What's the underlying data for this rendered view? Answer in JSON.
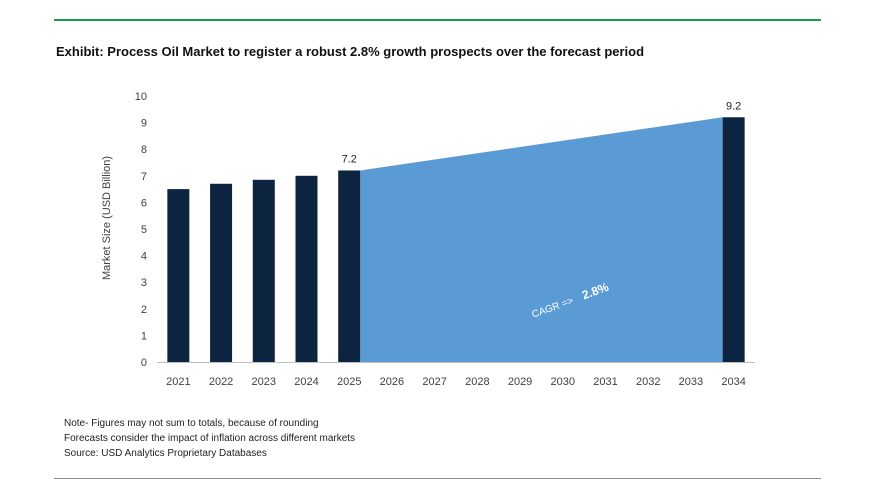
{
  "page": {
    "title": "Exhibit: Process Oil Market to register a robust 2.8% growth prospects over the forecast period",
    "notes": [
      "Note- Figures may not sum to totals, because of rounding",
      "Forecasts consider the impact of inflation across different markets",
      "Source: USD Analytics Proprietary Databases"
    ]
  },
  "chart_data": {
    "type": "bar",
    "title": "Process Oil Market to register a robust 2.8% growth prospects over the forecast period",
    "xlabel": "",
    "ylabel": "Market Size (USD Billion)",
    "ylim": [
      0,
      10
    ],
    "yticks": [
      "0",
      "1",
      "2",
      "3",
      "4",
      "5",
      "6",
      "7",
      "8",
      "9",
      "10"
    ],
    "categories": [
      "2021",
      "2022",
      "2023",
      "2024",
      "2025",
      "2026",
      "2027",
      "2028",
      "2029",
      "2030",
      "2031",
      "2032",
      "2033",
      "2034"
    ],
    "bars": [
      {
        "category": "2021",
        "value": 6.5
      },
      {
        "category": "2022",
        "value": 6.7
      },
      {
        "category": "2023",
        "value": 6.85
      },
      {
        "category": "2024",
        "value": 7.0
      },
      {
        "category": "2025",
        "value": 7.2,
        "label": "7.2"
      },
      {
        "category": "2034",
        "value": 9.2,
        "label": "9.2"
      }
    ],
    "forecast_area": {
      "from": "2025",
      "to": "2034",
      "start_value": 7.2,
      "end_value": 9.2
    },
    "annotation": {
      "prefix": "CAGR =>",
      "value": "2.8%"
    },
    "grid": false,
    "colors": {
      "bar": "#0d2440",
      "area": "#5b9bd5",
      "axis": "#bfbfbf",
      "text": "#404040"
    }
  }
}
